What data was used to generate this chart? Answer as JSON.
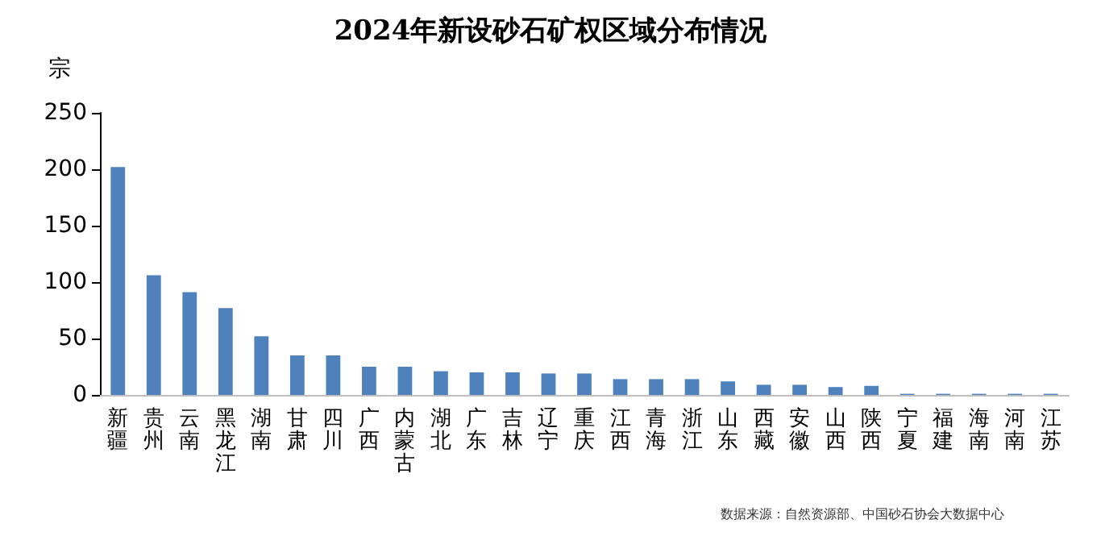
{
  "chart_data": {
    "type": "bar",
    "title": "2024年新设砂石矿权区域分布情况",
    "ylabel": "宗",
    "categories": [
      "新疆",
      "贵州",
      "云南",
      "黑龙江",
      "湖南",
      "甘肃",
      "四川",
      "广西",
      "内蒙古",
      "湖北",
      "广东",
      "吉林",
      "辽宁",
      "重庆",
      "江西",
      "青海",
      "浙江",
      "山东",
      "西藏",
      "安徽",
      "山西",
      "陕西",
      "宁夏",
      "福建",
      "海南",
      "河南",
      "江苏"
    ],
    "values": [
      202,
      106,
      91,
      77,
      52,
      35,
      35,
      25,
      25,
      21,
      20,
      20,
      19,
      19,
      14,
      14,
      14,
      12,
      9,
      9,
      7,
      8,
      1,
      1,
      1,
      1,
      1
    ],
    "color": "#4f81bd",
    "ylim": [
      0,
      250
    ],
    "yticks": [
      0,
      50,
      100,
      150,
      200,
      250
    ],
    "grid": false,
    "annotations": [
      "数据来源：自然资源部、中国砂石协会大数据中心"
    ]
  }
}
